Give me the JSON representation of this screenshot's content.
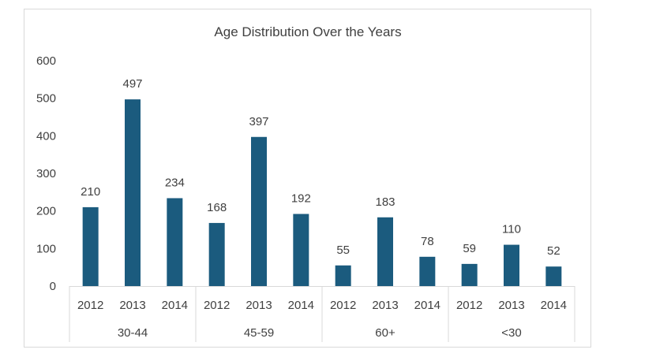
{
  "chart_data": {
    "type": "bar",
    "title": "Age Distribution Over the Years",
    "xlabel": "",
    "ylabel": "",
    "ylim": [
      0,
      600
    ],
    "yticks": [
      0,
      100,
      200,
      300,
      400,
      500,
      600
    ],
    "grid": false,
    "legend": "none",
    "groups": [
      {
        "name": "30-44",
        "categories": [
          "2012",
          "2013",
          "2014"
        ],
        "values": [
          210,
          497,
          234
        ]
      },
      {
        "name": "45-59",
        "categories": [
          "2012",
          "2013",
          "2014"
        ],
        "values": [
          168,
          397,
          192
        ]
      },
      {
        "name": "60+",
        "categories": [
          "2012",
          "2013",
          "2014"
        ],
        "values": [
          55,
          183,
          78
        ]
      },
      {
        "name": "<30",
        "categories": [
          "2012",
          "2013",
          "2014"
        ],
        "values": [
          59,
          110,
          52
        ]
      }
    ],
    "bar_color": "#1b5b7e"
  }
}
